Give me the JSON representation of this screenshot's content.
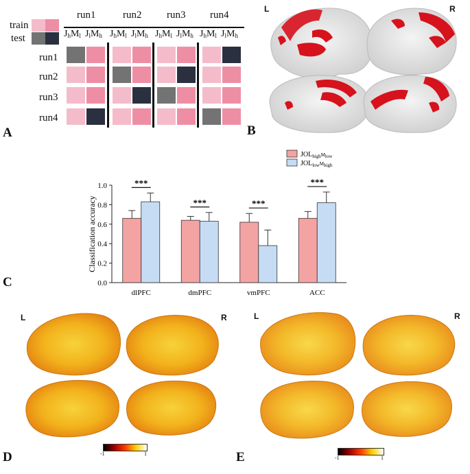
{
  "panelA": {
    "letter": "A",
    "legend": {
      "train_label": "train",
      "test_label": "test"
    },
    "columns": [
      "run1",
      "run2",
      "run3",
      "run4"
    ],
    "rows": [
      "run1",
      "run2",
      "run3",
      "run4"
    ],
    "subheader": {
      "a": "J",
      "a_sub": "h",
      "b": "M",
      "b_sub": "l",
      "c": "J",
      "c_sub": "l",
      "d": "M",
      "d_sub": "h"
    },
    "colors": {
      "light_pink": "#f4bccb",
      "pink": "#ee8ea4",
      "gray": "#737373",
      "dark": "#2b3040"
    }
  },
  "panelB": {
    "letter": "B",
    "left": "L",
    "right": "R"
  },
  "panelC": {
    "letter": "C",
    "chart_data": {
      "type": "bar",
      "categories": [
        "dlPFC",
        "dmPFC",
        "vmPFC",
        "ACC"
      ],
      "ylabel": "Classification accuracy",
      "ylim": [
        0,
        1.0
      ],
      "yticks": [
        "0.0",
        "0.2",
        "0.4",
        "0.6",
        "0.8",
        "1.0"
      ],
      "legend_placement": "top-right",
      "series": [
        {
          "name_main": "JOL",
          "name_sub1": "high",
          "name_mid": "M",
          "name_sub2": "low",
          "color": "#f4a3a3",
          "values": [
            0.66,
            0.64,
            0.62,
            0.66
          ],
          "errors": [
            0.08,
            0.04,
            0.09,
            0.07
          ]
        },
        {
          "name_main": "JOL",
          "name_sub1": "low",
          "name_mid": "M",
          "name_sub2": "high",
          "color": "#c5dcf4",
          "values": [
            0.83,
            0.63,
            0.38,
            0.82
          ],
          "errors": [
            0.09,
            0.09,
            0.16,
            0.11
          ]
        }
      ],
      "significance": [
        "***",
        "***",
        "***",
        "***"
      ]
    }
  },
  "panelD": {
    "letter": "D",
    "left": "L",
    "right": "R",
    "cbar_min": "-1",
    "cbar_max": "1"
  },
  "panelE": {
    "letter": "E",
    "left": "L",
    "right": "R",
    "cbar_min": "-1",
    "cbar_max": "1"
  }
}
